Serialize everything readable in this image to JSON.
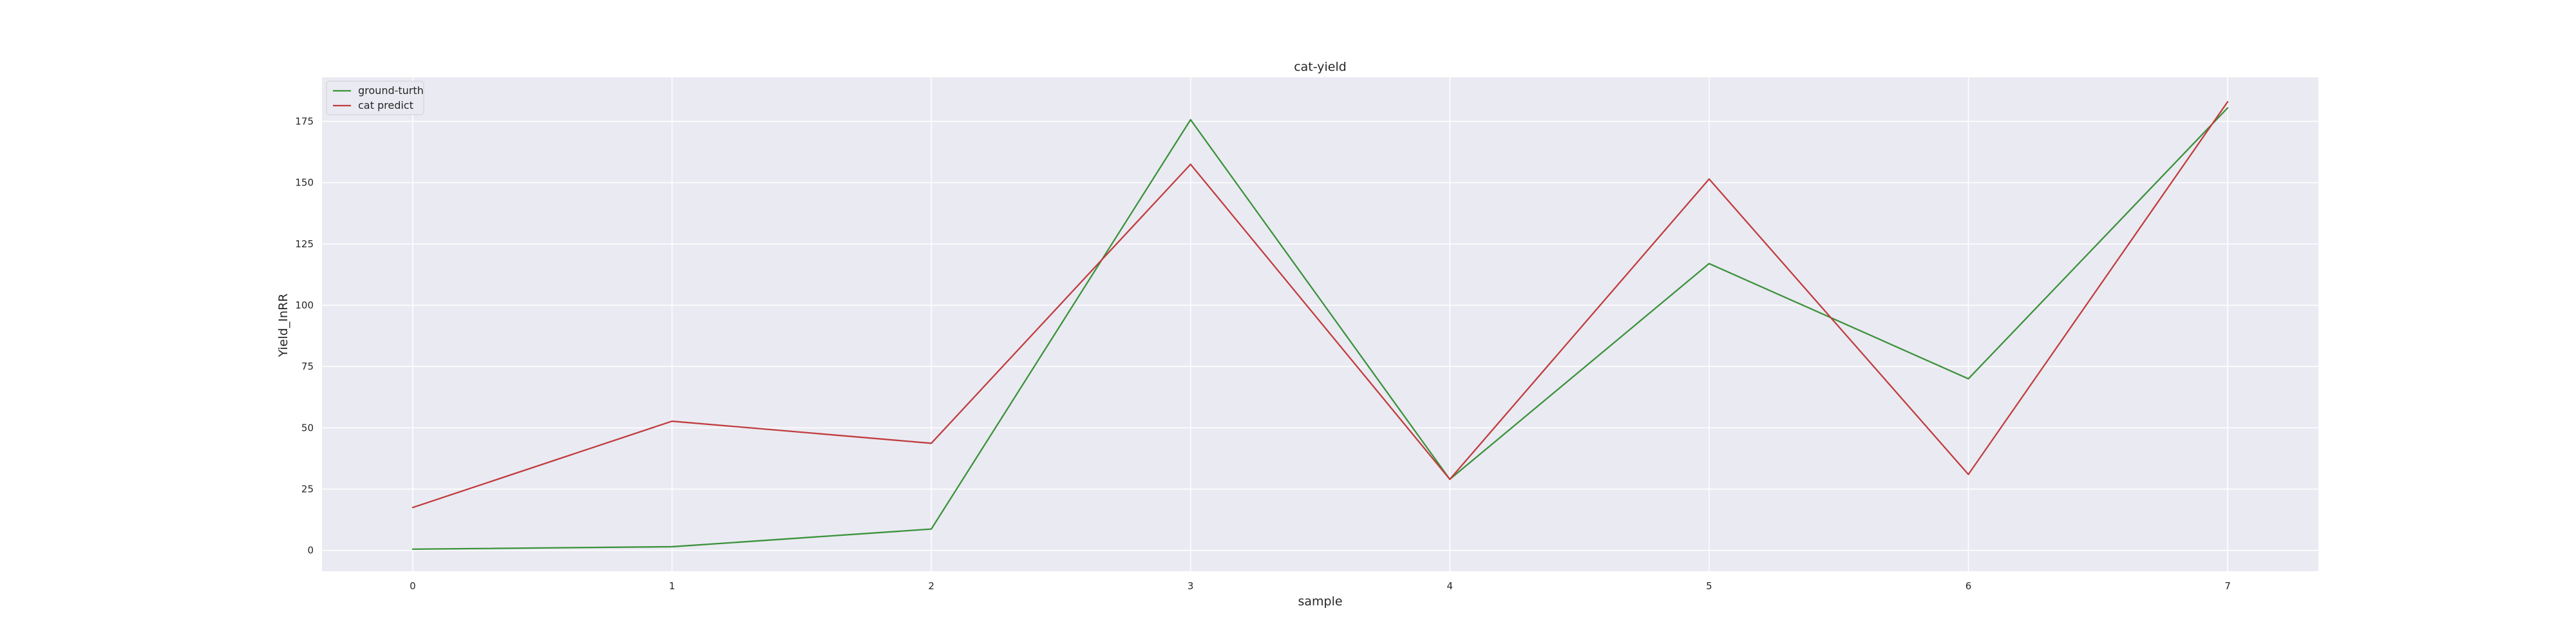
{
  "chart_data": {
    "type": "line",
    "title": "cat-yield",
    "xlabel": "sample",
    "ylabel": "Yield_InRR",
    "x": [
      0,
      1,
      2,
      3,
      4,
      5,
      6,
      7
    ],
    "xticks": [
      "0",
      "1",
      "2",
      "3",
      "4",
      "5",
      "6",
      "7"
    ],
    "yticks": [
      "0",
      "25",
      "50",
      "75",
      "100",
      "125",
      "150",
      "175"
    ],
    "ylim": [
      -8.5,
      193
    ],
    "grid": true,
    "legend_position": "top-left",
    "background_color": "#eaeaf2",
    "series": [
      {
        "name": "ground-turth",
        "color": "#3a923a",
        "values": [
          0.5,
          1.5,
          8.7,
          175.7,
          29.0,
          117.0,
          70.0,
          180.5
        ]
      },
      {
        "name": "cat predict",
        "color": "#c03d3e",
        "values": [
          17.5,
          52.7,
          43.7,
          157.5,
          29.0,
          151.5,
          31.0,
          183.0
        ]
      }
    ]
  }
}
